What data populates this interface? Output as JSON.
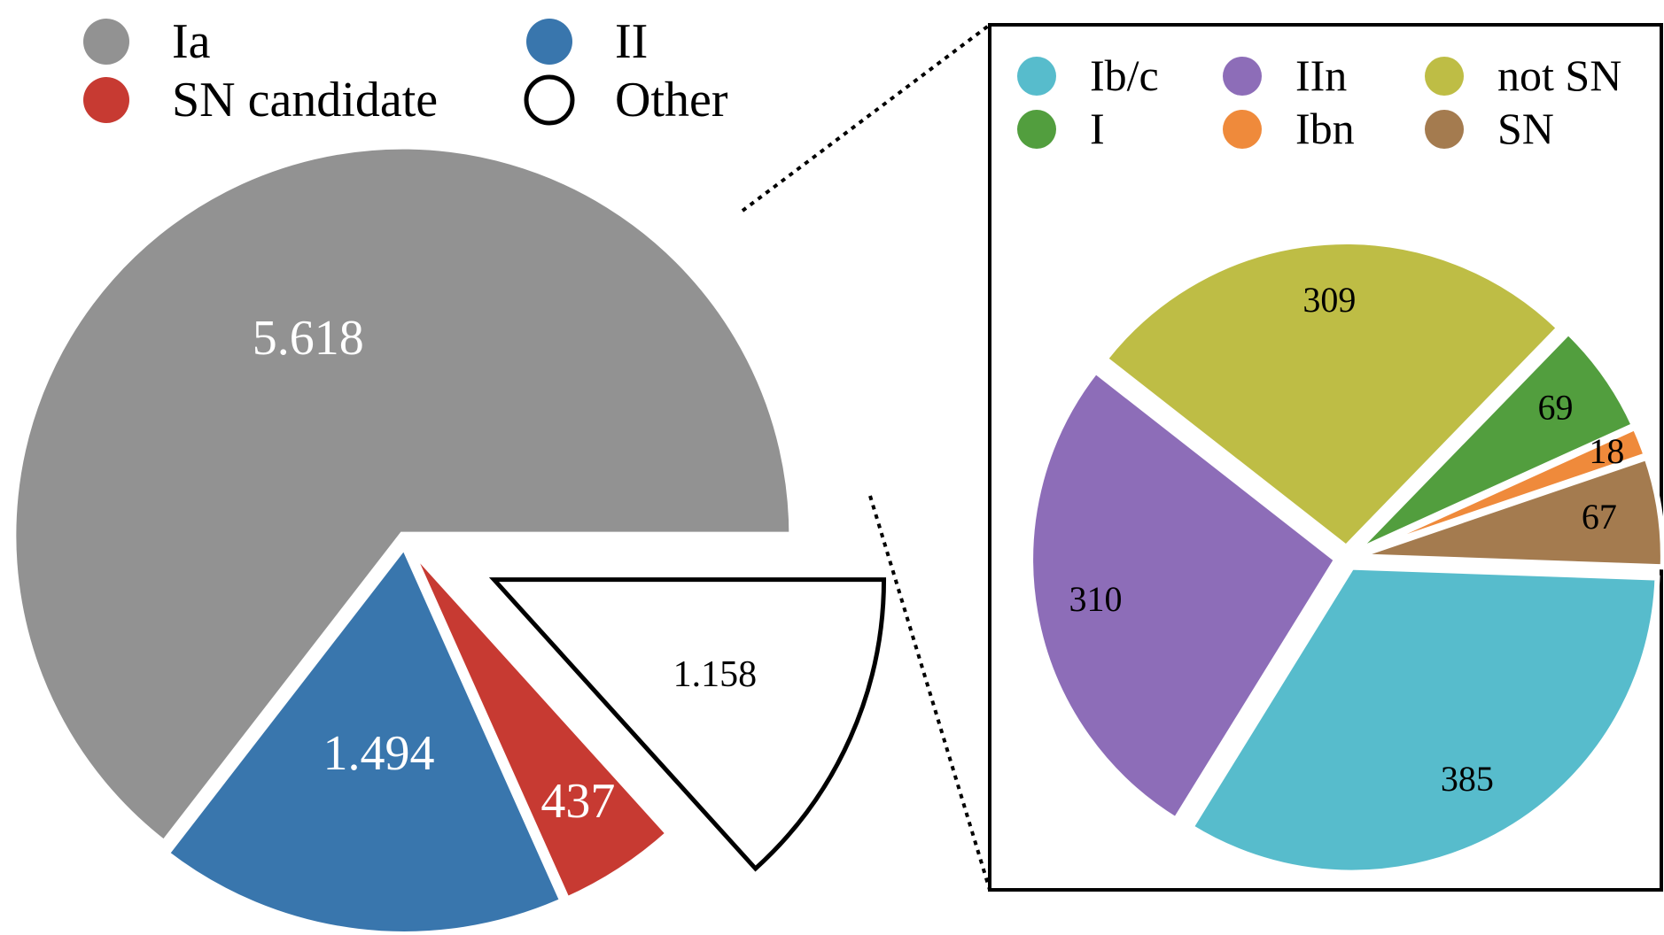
{
  "chart_data": [
    {
      "type": "pie",
      "title": "",
      "slices": [
        {
          "name": "Ia",
          "display": "5.618",
          "value": 5618,
          "color": "#929292",
          "label_color": "#ffffff"
        },
        {
          "name": "II",
          "display": "1.494",
          "value": 1494,
          "color": "#3976ad",
          "label_color": "#ffffff"
        },
        {
          "name": "SN candidate",
          "display": "437",
          "value": 437,
          "color": "#c73a32",
          "label_color": "#ffffff"
        },
        {
          "name": "Other",
          "display": "1.158",
          "value": 1158,
          "color": "#ffffff",
          "label_color": "#000000",
          "outlined": true,
          "exploded": true
        }
      ],
      "legend": {
        "placement": "top-left",
        "columns": 2
      }
    },
    {
      "type": "pie",
      "title": "",
      "breakdown_of": "Other",
      "slices": [
        {
          "name": "Ib/c",
          "display": "385",
          "value": 385,
          "color": "#57bccc"
        },
        {
          "name": "IIn",
          "display": "310",
          "value": 310,
          "color": "#8d6db8"
        },
        {
          "name": "not SN",
          "display": "309",
          "value": 309,
          "color": "#bebd45"
        },
        {
          "name": "I",
          "display": "69",
          "value": 69,
          "color": "#529e3e"
        },
        {
          "name": "Ibn",
          "display": "18",
          "value": 18,
          "color": "#ef8a3b"
        },
        {
          "name": "SN",
          "display": "67",
          "value": 67,
          "color": "#a47b4f"
        }
      ],
      "legend": {
        "placement": "top",
        "columns": 3
      }
    }
  ]
}
